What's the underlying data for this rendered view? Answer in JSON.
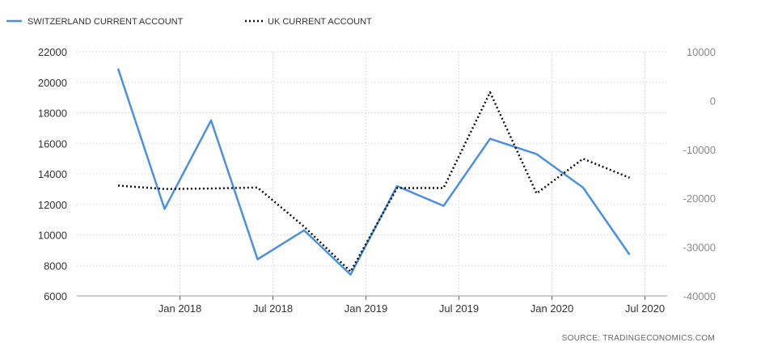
{
  "chart_data": {
    "type": "line",
    "x": [
      "2017-Q4",
      "2018-Q1",
      "2018-Q2",
      "2018-Q3",
      "2018-Q4",
      "2019-Q1",
      "2019-Q2",
      "2019-Q3",
      "2019-Q4",
      "2020-Q1",
      "2020-Q2",
      "2020-Q3"
    ],
    "x_ticks": [
      "Jan 2018",
      "Jul 2018",
      "Jan 2019",
      "Jul 2019",
      "Jan 2020",
      "Jul 2020"
    ],
    "series": [
      {
        "name": "SWITZERLAND CURRENT ACCOUNT",
        "axis": "left",
        "color": "#4a90e2",
        "style": "solid",
        "values": [
          20900,
          11700,
          17500,
          8400,
          10300,
          7400,
          13200,
          11900,
          16300,
          15300,
          13100,
          8700
        ]
      },
      {
        "name": "UK CURRENT ACCOUNT",
        "axis": "right",
        "color": "#111111",
        "style": "dotted",
        "values": [
          -17400,
          -18100,
          -18000,
          -17800,
          -25800,
          -35000,
          -17900,
          -17900,
          1700,
          -19000,
          -11900,
          -15800
        ]
      }
    ],
    "y_left": {
      "min": 6000,
      "max": 22000,
      "ticks": [
        "6000",
        "8000",
        "10000",
        "12000",
        "14000",
        "16000",
        "18000",
        "20000",
        "22000"
      ]
    },
    "y_right": {
      "min": -40000,
      "max": 10000,
      "ticks": [
        "-40000",
        "-30000",
        "-20000",
        "-10000",
        "0",
        "10000"
      ]
    },
    "grid": true,
    "legend_position": "top-left",
    "source": "SOURCE:  TRADINGECONOMICS.COM"
  }
}
